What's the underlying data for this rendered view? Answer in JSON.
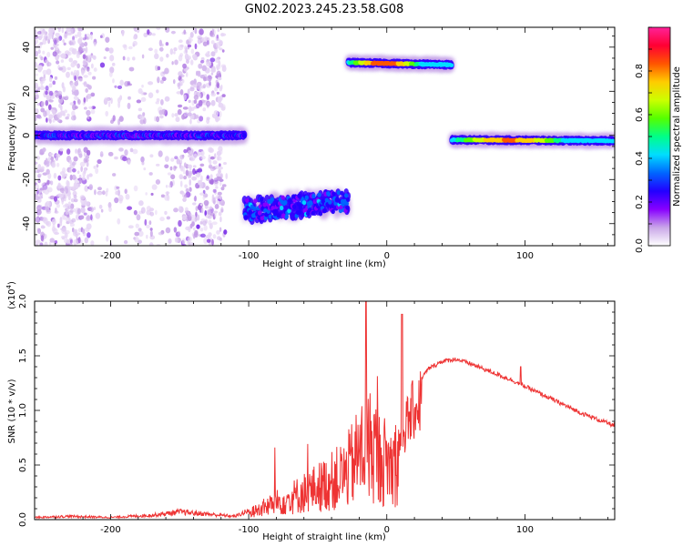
{
  "title": "GN02.2023.245.23.58.G08",
  "colors": {
    "snr_line": "#ee3333",
    "colorbar": [
      "#ffffff",
      "#c9a6e8",
      "#8800ff",
      "#2200ff",
      "#0066ff",
      "#00ddff",
      "#00ff88",
      "#55ff00",
      "#ccff00",
      "#ffcc00",
      "#ff5500",
      "#ff0033",
      "#ff2299"
    ]
  },
  "chart_data": [
    {
      "type": "heatmap",
      "xlabel": "Height of straight line (km)",
      "ylabel": "Frequency (Hz)",
      "xlim": [
        -255,
        165
      ],
      "ylim": [
        -50,
        49
      ],
      "xticks": [
        -200,
        -100,
        0,
        100
      ],
      "yticks": [
        -40,
        -20,
        0,
        20,
        40
      ],
      "colorbar": {
        "label": "Normalized spectral amplitude",
        "range": [
          0,
          1
        ],
        "ticks": [
          0.0,
          0.2,
          0.4,
          0.6,
          0.8
        ]
      },
      "segments": [
        {
          "x_range": [
            -255,
            -103
          ],
          "freq_start": 0,
          "freq_end": 0,
          "level": 0.35
        },
        {
          "x_range": [
            -103,
            -28
          ],
          "freq_start": -34,
          "freq_end": -30,
          "level": 0.4
        },
        {
          "x_range": [
            -28,
            47
          ],
          "freq_start": 33,
          "freq_end": 32,
          "level": 0.85
        },
        {
          "x_range": [
            47,
            165
          ],
          "freq_start": -2,
          "freq_end": -2.5,
          "level": 0.8
        }
      ]
    },
    {
      "type": "line",
      "xlabel": "Height of straight line (km)",
      "ylabel": "SNR (10 * v/v)",
      "yscale_label": "(x10",
      "yscale_exp": "4",
      "yscale_close": ")",
      "xlim": [
        -255,
        165
      ],
      "ylim": [
        0,
        2.0
      ],
      "xticks": [
        -200,
        -100,
        0,
        100
      ],
      "yticks": [
        0.0,
        0.5,
        1.0,
        1.5,
        2.0
      ],
      "series": [
        {
          "x": [
            -255,
            -230,
            -200,
            -170,
            -150,
            -130,
            -110,
            -100,
            -90,
            -80,
            -70,
            -60,
            -50,
            -40,
            -30,
            -20,
            -15,
            -10,
            -5,
            0,
            5,
            10,
            20,
            30,
            40,
            50,
            60,
            70,
            80,
            90,
            100,
            110,
            120,
            130,
            140,
            150,
            165
          ],
          "y": [
            0.02,
            0.03,
            0.02,
            0.04,
            0.07,
            0.05,
            0.03,
            0.08,
            0.15,
            0.22,
            0.28,
            0.35,
            0.42,
            0.5,
            0.6,
            0.85,
            1.0,
            0.95,
            0.8,
            0.75,
            0.7,
            0.9,
            1.2,
            1.38,
            1.45,
            1.47,
            1.43,
            1.38,
            1.33,
            1.28,
            1.22,
            1.16,
            1.1,
            1.04,
            0.98,
            0.93,
            0.86
          ]
        }
      ]
    }
  ]
}
